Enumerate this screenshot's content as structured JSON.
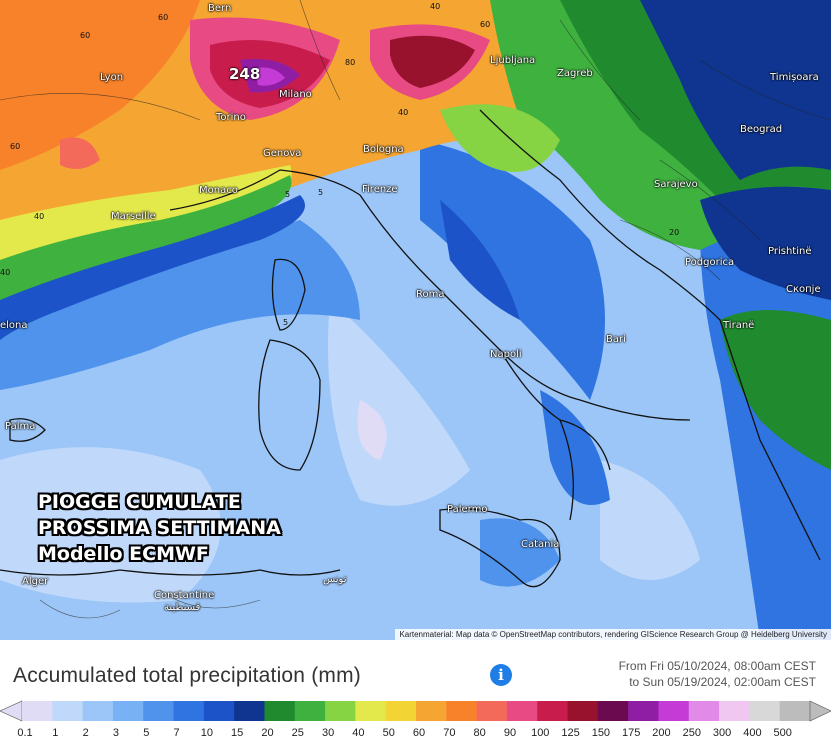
{
  "map": {
    "cities": [
      {
        "name": "Bern"
      },
      {
        "name": "Lyon"
      },
      {
        "name": "Torino"
      },
      {
        "name": "Milano"
      },
      {
        "name": "Genova"
      },
      {
        "name": "Monaco"
      },
      {
        "name": "Marseille"
      },
      {
        "name": "Bologna"
      },
      {
        "name": "Firenze"
      },
      {
        "name": "Roma"
      },
      {
        "name": "Napoli"
      },
      {
        "name": "Bari"
      },
      {
        "name": "Palermo"
      },
      {
        "name": "Catania"
      },
      {
        "name": "Ljubljana"
      },
      {
        "name": "Zagreb"
      },
      {
        "name": "Sarajevo"
      },
      {
        "name": "Beograd"
      },
      {
        "name": "Timișoara"
      },
      {
        "name": "Podgorica"
      },
      {
        "name": "Prishtinë"
      },
      {
        "name": "Скопје"
      },
      {
        "name": "Tiranë"
      },
      {
        "name": "Palma"
      },
      {
        "name": "Alger"
      },
      {
        "name": "Constantine"
      },
      {
        "name": "قسنطينة"
      },
      {
        "name": "تونس"
      },
      {
        "name": "elona"
      }
    ],
    "isolines": [
      "60",
      "60",
      "40",
      "60",
      "80",
      "60",
      "40",
      "40",
      "20",
      "40",
      "5",
      "5",
      "5"
    ],
    "max_value": "248",
    "overlay_lines": [
      "PIOGGE CUMULATE",
      "PROSSIMA SETTIMANA",
      "Modello ECMWF"
    ],
    "attribution": "Kartenmaterial: Map data © OpenStreetMap contributors, rendering GIScience Research Group @ Heidelberg University"
  },
  "legend": {
    "title": "Accumulated total precipitation (mm)",
    "info_icon": "info-icon",
    "range_from": "From Fri 05/10/2024, 08:00am CEST",
    "range_to": "to Sun 05/19/2024, 02:00am CEST",
    "stops": [
      "0.1",
      "1",
      "2",
      "3",
      "5",
      "7",
      "10",
      "15",
      "20",
      "25",
      "30",
      "40",
      "50",
      "60",
      "70",
      "80",
      "90",
      "100",
      "125",
      "150",
      "175",
      "200",
      "250",
      "300",
      "400",
      "500"
    ],
    "colors": [
      "#e1dcf5",
      "#c0d9fb",
      "#9cc6f7",
      "#78b1f4",
      "#4f93ec",
      "#2f74e0",
      "#1c53c8",
      "#0f3591",
      "#1f8a2e",
      "#3fb13f",
      "#86d443",
      "#e3e94a",
      "#f2d534",
      "#f5a531",
      "#f7822a",
      "#f46a5a",
      "#e84b83",
      "#c81d4c",
      "#98122d",
      "#6c0a4f",
      "#8f1ea5",
      "#c53bd5",
      "#e28ae8",
      "#efc7f0",
      "#d8d8d8",
      "#bcbcbc"
    ]
  }
}
